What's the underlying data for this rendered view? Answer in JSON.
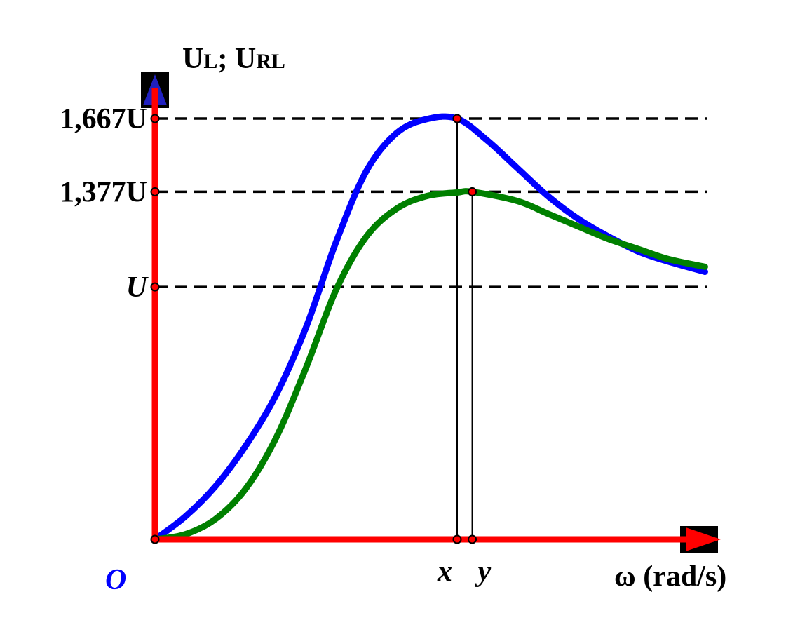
{
  "chart_data": {
    "type": "line",
    "y_axis_label_main": "U",
    "y_axis_label_sub1": "L",
    "y_axis_label_sep": "; ",
    "y_axis_label_main2": "U",
    "y_axis_label_sub2": "RL",
    "x_axis_label": "ω (rad/s)",
    "origin_label": "O",
    "y_ticks": [
      {
        "label": "1,667U",
        "value": 1.667
      },
      {
        "label": "1,377U",
        "value": 1.377
      },
      {
        "label": "U",
        "value": 1.0
      }
    ],
    "x_ticks": [
      {
        "label": "x",
        "value": 1.0
      },
      {
        "label": "y",
        "value": 1.05
      }
    ],
    "ylim": [
      0,
      2.02
    ],
    "xlim": [
      0,
      1.87
    ],
    "series": [
      {
        "color": "#0000ff",
        "points": [
          [
            0,
            0
          ],
          [
            0.1,
            0.09
          ],
          [
            0.2,
            0.21
          ],
          [
            0.3,
            0.37
          ],
          [
            0.4,
            0.57
          ],
          [
            0.5,
            0.84
          ],
          [
            0.6,
            1.18
          ],
          [
            0.7,
            1.46
          ],
          [
            0.8,
            1.61
          ],
          [
            0.9,
            1.665
          ],
          [
            1.0,
            1.667
          ],
          [
            1.1,
            1.58
          ],
          [
            1.2,
            1.47
          ],
          [
            1.3,
            1.36
          ],
          [
            1.4,
            1.27
          ],
          [
            1.5,
            1.2
          ],
          [
            1.6,
            1.14
          ],
          [
            1.7,
            1.1
          ],
          [
            1.82,
            1.06
          ]
        ]
      },
      {
        "color": "#008000",
        "points": [
          [
            0,
            0
          ],
          [
            0.1,
            0.02
          ],
          [
            0.2,
            0.08
          ],
          [
            0.3,
            0.2
          ],
          [
            0.4,
            0.4
          ],
          [
            0.5,
            0.68
          ],
          [
            0.6,
            0.99
          ],
          [
            0.7,
            1.2
          ],
          [
            0.8,
            1.31
          ],
          [
            0.9,
            1.36
          ],
          [
            1.0,
            1.374
          ],
          [
            1.05,
            1.377
          ],
          [
            1.2,
            1.34
          ],
          [
            1.3,
            1.29
          ],
          [
            1.4,
            1.24
          ],
          [
            1.5,
            1.19
          ],
          [
            1.6,
            1.15
          ],
          [
            1.7,
            1.11
          ],
          [
            1.82,
            1.08
          ]
        ]
      }
    ],
    "peaks": [
      {
        "x": 1.0,
        "y": 1.667
      },
      {
        "x": 1.05,
        "y": 1.377
      }
    ],
    "colors": {
      "axis": "#ff0000",
      "dashed": "#000000",
      "origin_label": "#0000ff",
      "marker_fill": "#ff0000",
      "arrow_bg": "#000000",
      "arrow_y_head": "#2020c0"
    }
  }
}
